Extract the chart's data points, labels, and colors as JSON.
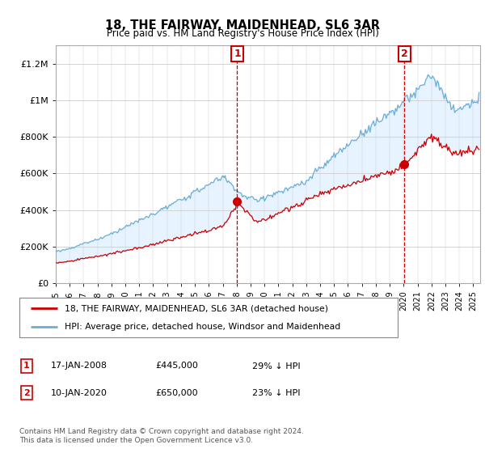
{
  "title": "18, THE FAIRWAY, MAIDENHEAD, SL6 3AR",
  "subtitle": "Price paid vs. HM Land Registry's House Price Index (HPI)",
  "legend_line1": "18, THE FAIRWAY, MAIDENHEAD, SL6 3AR (detached house)",
  "legend_line2": "HPI: Average price, detached house, Windsor and Maidenhead",
  "annotation1_date": "17-JAN-2008",
  "annotation1_price": "£445,000",
  "annotation1_hpi": "29% ↓ HPI",
  "annotation1_year": 2008.04,
  "annotation1_value": 445000,
  "annotation2_date": "10-JAN-2020",
  "annotation2_price": "£650,000",
  "annotation2_hpi": "23% ↓ HPI",
  "annotation2_year": 2020.04,
  "annotation2_value": 650000,
  "footer": "Contains HM Land Registry data © Crown copyright and database right 2024.\nThis data is licensed under the Open Government Licence v3.0.",
  "hpi_color": "#6baed6",
  "price_color": "#cc0000",
  "annotation_color": "#cc0000",
  "fill_color": "#ddeeff",
  "background_color": "white",
  "plot_background": "white",
  "grid_color": "#cccccc",
  "ylim": [
    0,
    1300000
  ],
  "xlim_start": 1995,
  "xlim_end": 2025.5
}
